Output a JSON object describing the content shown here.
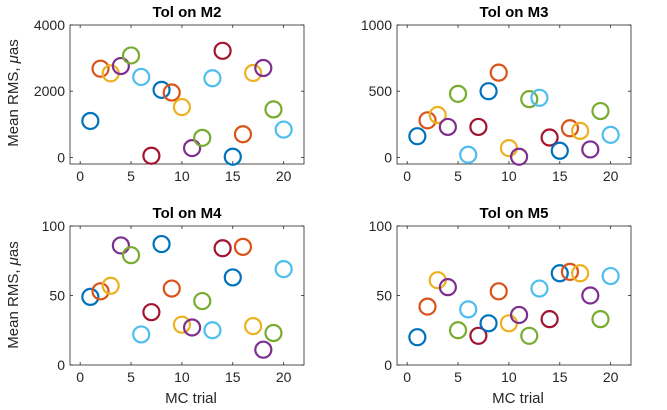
{
  "figure": {
    "ylabel_text": "Mean RMS, ",
    "ylabel_greek": "μ",
    "ylabel_unit": "as",
    "xlabel": "MC trial",
    "trial_colors": [
      "#0072BD",
      "#D95319",
      "#EDB120",
      "#7E2F8E",
      "#77AC30",
      "#4DBEEE",
      "#A2142F"
    ]
  },
  "chart_data": [
    {
      "type": "scatter",
      "title": "Tol on M2",
      "xlabel": "",
      "ylabel": "",
      "xlim": [
        -1,
        22
      ],
      "ylim": [
        -200,
        4000
      ],
      "xticks": [
        "0",
        "5",
        "10",
        "15",
        "20"
      ],
      "yticks": [
        "0",
        "2000",
        "4000"
      ],
      "x": [
        1,
        2,
        3,
        4,
        5,
        6,
        7,
        8,
        9,
        10,
        11,
        12,
        13,
        14,
        15,
        16,
        17,
        18,
        19,
        20
      ],
      "y": [
        1100,
        2680,
        2540,
        2760,
        3080,
        2430,
        50,
        2040,
        1960,
        1520,
        280,
        590,
        2390,
        3220,
        20,
        700,
        2550,
        2700,
        1450,
        840
      ]
    },
    {
      "type": "scatter",
      "title": "Tol on M3",
      "xlabel": "",
      "ylabel": "",
      "xlim": [
        -1,
        22
      ],
      "ylim": [
        -50,
        1000
      ],
      "xticks": [
        "0",
        "5",
        "10",
        "15",
        "20"
      ],
      "yticks": [
        "0",
        "500",
        "1000"
      ],
      "x": [
        1,
        2,
        3,
        4,
        5,
        6,
        7,
        8,
        9,
        10,
        11,
        12,
        13,
        14,
        15,
        16,
        17,
        18,
        19,
        20
      ],
      "y": [
        160,
        280,
        320,
        230,
        480,
        20,
        230,
        500,
        640,
        70,
        5,
        440,
        450,
        150,
        50,
        220,
        200,
        60,
        350,
        170
      ]
    },
    {
      "type": "scatter",
      "title": "Tol on M4",
      "xlabel": "",
      "ylabel": "",
      "xlim": [
        -1,
        22
      ],
      "ylim": [
        0,
        100
      ],
      "xticks": [
        "0",
        "5",
        "10",
        "15",
        "20"
      ],
      "yticks": [
        "0",
        "50",
        "100"
      ],
      "x": [
        1,
        2,
        3,
        4,
        5,
        6,
        7,
        8,
        9,
        10,
        11,
        12,
        13,
        14,
        15,
        16,
        17,
        18,
        19,
        20
      ],
      "y": [
        49,
        53,
        57,
        86,
        79,
        22,
        38,
        87,
        55,
        29,
        27,
        46,
        25,
        84,
        63,
        85,
        28,
        11,
        23,
        69
      ]
    },
    {
      "type": "scatter",
      "title": "Tol on M5",
      "xlabel": "",
      "ylabel": "",
      "xlim": [
        -1,
        22
      ],
      "ylim": [
        0,
        100
      ],
      "xticks": [
        "0",
        "5",
        "10",
        "15",
        "20"
      ],
      "yticks": [
        "0",
        "50",
        "100"
      ],
      "x": [
        1,
        2,
        3,
        4,
        5,
        6,
        7,
        8,
        9,
        10,
        11,
        12,
        13,
        14,
        15,
        16,
        17,
        18,
        19,
        20
      ],
      "y": [
        20,
        42,
        61,
        56,
        25,
        40,
        21,
        30,
        53,
        30,
        36,
        21,
        55,
        33,
        66,
        67,
        66,
        50,
        33,
        64
      ]
    }
  ]
}
